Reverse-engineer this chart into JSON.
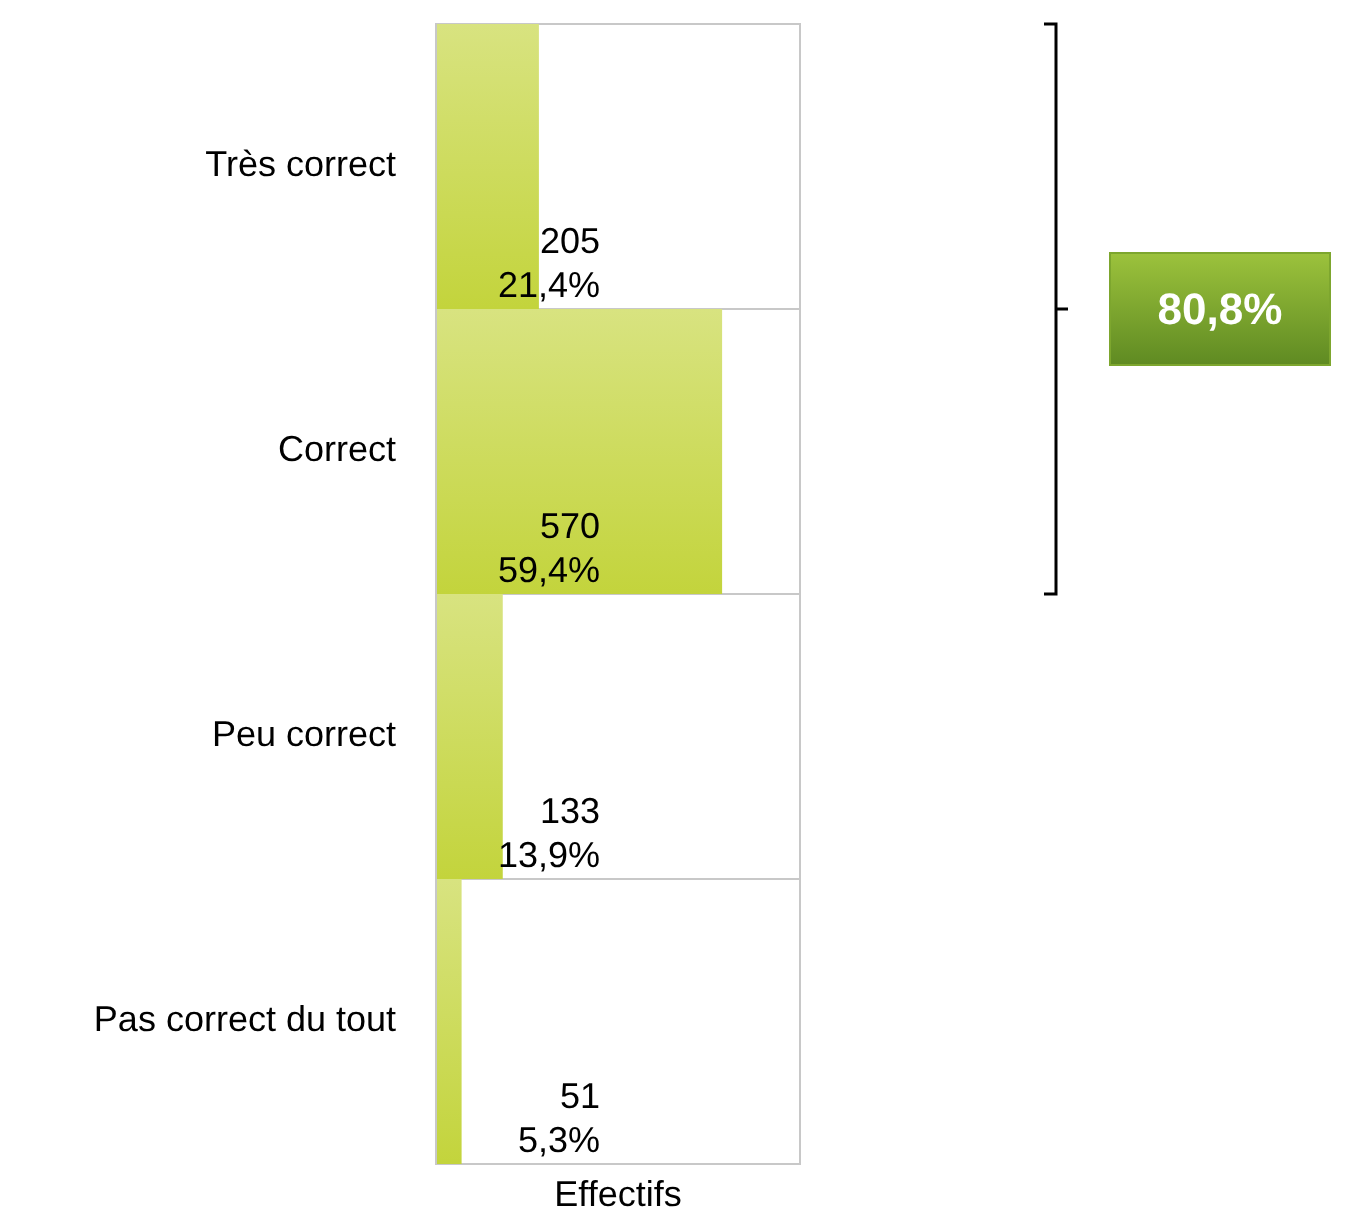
{
  "chart_data": {
    "type": "bar",
    "orientation": "horizontal",
    "xlabel": "Effectifs",
    "categories": [
      "Très correct",
      "Correct",
      "Peu correct",
      "Pas correct du tout"
    ],
    "values": [
      205,
      570,
      133,
      51
    ],
    "color": "#c3d43c",
    "value_labels": [
      "205\n21,4%",
      "570\n59,4%",
      "133\n13,9%",
      "51\n5,3%"
    ],
    "annotations": [
      "80,8%"
    ],
    "grid": "y"
  }
}
